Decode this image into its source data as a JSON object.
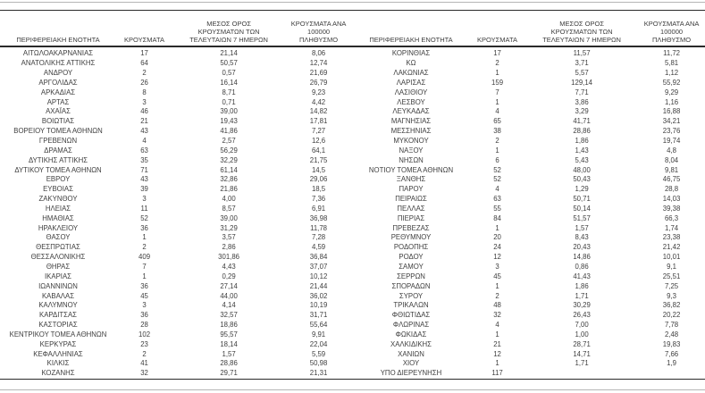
{
  "table": {
    "headers": {
      "region": "ΠΕΡΙΦΕΡΕΙΑΚΗ ΕΝΟΤΗΤΑ",
      "cases": "ΚΡΟΥΣΜΑΤΑ",
      "avg7": "ΜΕΣΟΣ ΟΡΟΣ\nΚΡΟΥΣΜΑΤΩΝ ΤΩΝ\nΤΕΛΕΥΤΑΙΩΝ 7 ΗΜΕΡΩΝ",
      "per100k": "ΚΡΟΥΣΜΑΤΑ ΑΝΑ 100000\nΠΛΗΘΥΣΜΟ"
    },
    "left_rows": [
      [
        "ΑΙΤΩΛΟΑΚΑΡΝΑΝΙΑΣ",
        "17",
        "21,14",
        "8,06"
      ],
      [
        "ΑΝΑΤΟΛΙΚΗΣ ΑΤΤΙΚΗΣ",
        "64",
        "50,57",
        "12,74"
      ],
      [
        "ΑΝΔΡΟΥ",
        "2",
        "0,57",
        "21,69"
      ],
      [
        "ΑΡΓΟΛΙΔΑΣ",
        "26",
        "16,14",
        "26,79"
      ],
      [
        "ΑΡΚΑΔΙΑΣ",
        "8",
        "8,71",
        "9,23"
      ],
      [
        "ΑΡΤΑΣ",
        "3",
        "0,71",
        "4,42"
      ],
      [
        "ΑΧΑΪΑΣ",
        "46",
        "39,00",
        "14,82"
      ],
      [
        "ΒΟΙΩΤΙΑΣ",
        "21",
        "19,43",
        "17,81"
      ],
      [
        "ΒΟΡΕΙΟΥ ΤΟΜΕΑ ΑΘΗΝΩΝ",
        "43",
        "41,86",
        "7,27"
      ],
      [
        "ΓΡΕΒΕΝΩΝ",
        "4",
        "2,57",
        "12,6"
      ],
      [
        "ΔΡΑΜΑΣ",
        "63",
        "56,29",
        "64,1"
      ],
      [
        "ΔΥΤΙΚΗΣ ΑΤΤΙΚΗΣ",
        "35",
        "32,29",
        "21,75"
      ],
      [
        "ΔΥΤΙΚΟΥ ΤΟΜΕΑ ΑΘΗΝΩΝ",
        "71",
        "61,14",
        "14,5"
      ],
      [
        "ΕΒΡΟΥ",
        "43",
        "32,86",
        "29,06"
      ],
      [
        "ΕΥΒΟΙΑΣ",
        "39",
        "21,86",
        "18,5"
      ],
      [
        "ΖΑΚΥΝΘΟΥ",
        "3",
        "4,00",
        "7,36"
      ],
      [
        "ΗΛΕΙΑΣ",
        "11",
        "8,57",
        "6,91"
      ],
      [
        "ΗΜΑΘΙΑΣ",
        "52",
        "39,00",
        "36,98"
      ],
      [
        "ΗΡΑΚΛΕΙΟΥ",
        "36",
        "31,29",
        "11,78"
      ],
      [
        "ΘΑΣΟΥ",
        "1",
        "3,57",
        "7,28"
      ],
      [
        "ΘΕΣΠΡΩΤΙΑΣ",
        "2",
        "2,86",
        "4,59"
      ],
      [
        "ΘΕΣΣΑΛΟΝΙΚΗΣ",
        "409",
        "301,86",
        "36,84"
      ],
      [
        "ΘΗΡΑΣ",
        "7",
        "4,43",
        "37,07"
      ],
      [
        "ΙΚΑΡΙΑΣ",
        "1",
        "0,29",
        "10,12"
      ],
      [
        "ΙΩΑΝΝΙΝΩΝ",
        "36",
        "27,14",
        "21,44"
      ],
      [
        "ΚΑΒΑΛΑΣ",
        "45",
        "44,00",
        "36,02"
      ],
      [
        "ΚΑΛΥΜΝΟΥ",
        "3",
        "4,14",
        "10,19"
      ],
      [
        "ΚΑΡΔΙΤΣΑΣ",
        "36",
        "32,57",
        "31,71"
      ],
      [
        "ΚΑΣΤΟΡΙΑΣ",
        "28",
        "18,86",
        "55,64"
      ],
      [
        "ΚΕΝΤΡΙΚΟΥ ΤΟΜΕΑ ΑΘΗΝΩΝ",
        "102",
        "95,57",
        "9,91"
      ],
      [
        "ΚΕΡΚΥΡΑΣ",
        "23",
        "18,14",
        "22,04"
      ],
      [
        "ΚΕΦΑΛΛΗΝΙΑΣ",
        "2",
        "1,57",
        "5,59"
      ],
      [
        "ΚΙΛΚΙΣ",
        "41",
        "28,86",
        "50,98"
      ],
      [
        "ΚΟΖΑΝΗΣ",
        "32",
        "29,71",
        "21,31"
      ]
    ],
    "right_rows": [
      [
        "ΚΟΡΙΝΘΙΑΣ",
        "17",
        "11,57",
        "11,72"
      ],
      [
        "ΚΩ",
        "2",
        "3,71",
        "5,81"
      ],
      [
        "ΛΑΚΩΝΙΑΣ",
        "1",
        "5,57",
        "1,12"
      ],
      [
        "ΛΑΡΙΣΑΣ",
        "159",
        "129,14",
        "55,92"
      ],
      [
        "ΛΑΣΙΘΙΟΥ",
        "7",
        "7,71",
        "9,29"
      ],
      [
        "ΛΕΣΒΟΥ",
        "1",
        "3,86",
        "1,16"
      ],
      [
        "ΛΕΥΚΑΔΑΣ",
        "4",
        "3,29",
        "16,88"
      ],
      [
        "ΜΑΓΝΗΣΙΑΣ",
        "65",
        "41,71",
        "34,21"
      ],
      [
        "ΜΕΣΣΗΝΙΑΣ",
        "38",
        "28,86",
        "23,76"
      ],
      [
        "ΜΥΚΟΝΟΥ",
        "2",
        "1,86",
        "19,74"
      ],
      [
        "ΝΑΞΟΥ",
        "1",
        "1,43",
        "4,8"
      ],
      [
        "ΝΗΣΩΝ",
        "6",
        "5,43",
        "8,04"
      ],
      [
        "ΝΟΤΙΟΥ ΤΟΜΕΑ ΑΘΗΝΩΝ",
        "52",
        "48,00",
        "9,81"
      ],
      [
        "ΞΑΝΘΗΣ",
        "52",
        "50,43",
        "46,75"
      ],
      [
        "ΠΑΡΟΥ",
        "4",
        "1,29",
        "28,8"
      ],
      [
        "ΠΕΙΡΑΙΩΣ",
        "63",
        "50,71",
        "14,03"
      ],
      [
        "ΠΕΛΛΑΣ",
        "55",
        "50,14",
        "39,38"
      ],
      [
        "ΠΙΕΡΙΑΣ",
        "84",
        "51,57",
        "66,3"
      ],
      [
        "ΠΡΕΒΕΖΑΣ",
        "1",
        "1,57",
        "1,74"
      ],
      [
        "ΡΕΘΥΜΝΟΥ",
        "20",
        "8,43",
        "23,38"
      ],
      [
        "ΡΟΔΟΠΗΣ",
        "24",
        "20,43",
        "21,42"
      ],
      [
        "ΡΟΔΟΥ",
        "12",
        "14,86",
        "10,01"
      ],
      [
        "ΣΑΜΟΥ",
        "3",
        "0,86",
        "9,1"
      ],
      [
        "ΣΕΡΡΩΝ",
        "45",
        "41,43",
        "25,51"
      ],
      [
        "ΣΠΟΡΑΔΩΝ",
        "1",
        "1,86",
        "7,25"
      ],
      [
        "ΣΥΡΟΥ",
        "2",
        "1,71",
        "9,3"
      ],
      [
        "ΤΡΙΚΑΛΩΝ",
        "48",
        "30,29",
        "36,82"
      ],
      [
        "ΦΘΙΩΤΙΔΑΣ",
        "32",
        "26,43",
        "20,22"
      ],
      [
        "ΦΛΩΡΙΝΑΣ",
        "4",
        "7,00",
        "7,78"
      ],
      [
        "ΦΩΚΙΔΑΣ",
        "1",
        "1,00",
        "2,48"
      ],
      [
        "ΧΑΛΚΙΔΙΚΗΣ",
        "21",
        "28,71",
        "19,83"
      ],
      [
        "ΧΑΝΙΩΝ",
        "12",
        "14,71",
        "7,66"
      ],
      [
        "ΧΙΟΥ",
        "1",
        "1,71",
        "1,9"
      ],
      [
        "ΥΠΟ ΔΙΕΡΕΥΝΗΣΗ",
        "117",
        "",
        ""
      ]
    ]
  }
}
